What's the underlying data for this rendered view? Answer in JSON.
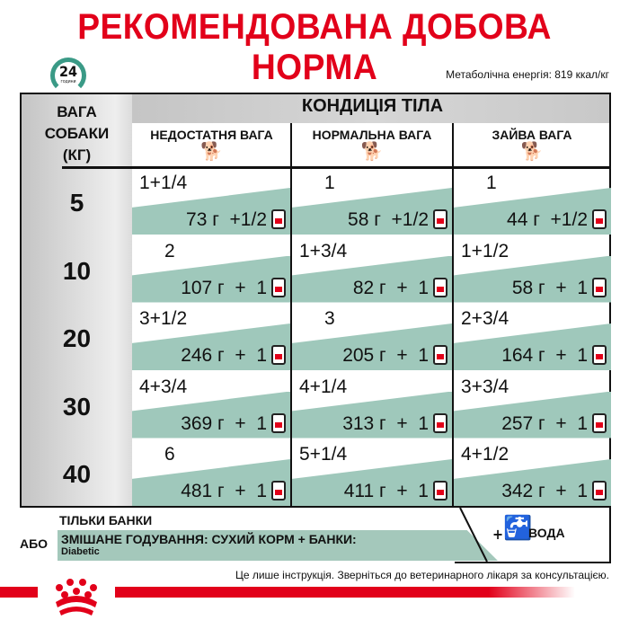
{
  "title": "РЕКОМЕНДОВАНА ДОБОВА НОРМА",
  "clock": {
    "number": "24",
    "label": "години",
    "icon": "clock-24h-icon",
    "color": "#3a9a86"
  },
  "energy": "Метаболічна енергія: 819 ккал/кг",
  "table": {
    "condition_header": "КОНДИЦІЯ ТІЛА",
    "weight_header": [
      "ВАГА",
      "СОБАКИ",
      "(КГ)"
    ],
    "columns": [
      {
        "label": "НЕДОСТАТНЯ ВАГА",
        "icon": "thin-dog-icon"
      },
      {
        "label": "НОРМАЛЬНА ВАГА",
        "icon": "normal-dog-icon"
      },
      {
        "label": "ЗАЙВА ВАГА",
        "icon": "fat-dog-icon"
      }
    ],
    "rows": [
      {
        "weight": "5",
        "cells": [
          {
            "cans": "1+1/4",
            "dry": "73 г  +1/2"
          },
          {
            "cans": "1",
            "dry": "58 г  +1/2"
          },
          {
            "cans": "1",
            "dry": "44 г  +1/2"
          }
        ]
      },
      {
        "weight": "10",
        "cells": [
          {
            "cans": "2",
            "dry": "107 г  +  1"
          },
          {
            "cans": "1+3/4",
            "dry": "82 г  +  1"
          },
          {
            "cans": "1+1/2",
            "dry": "58 г  +  1"
          }
        ]
      },
      {
        "weight": "20",
        "cells": [
          {
            "cans": "3+1/2",
            "dry": "246 г  +  1"
          },
          {
            "cans": "3",
            "dry": "205 г  +  1"
          },
          {
            "cans": "2+3/4",
            "dry": "164 г  +  1"
          }
        ]
      },
      {
        "weight": "30",
        "cells": [
          {
            "cans": "4+3/4",
            "dry": "369 г  +  1"
          },
          {
            "cans": "4+1/4",
            "dry": "313 г  +  1"
          },
          {
            "cans": "3+3/4",
            "dry": "257 г  +  1"
          }
        ]
      },
      {
        "weight": "40",
        "cells": [
          {
            "cans": "6",
            "dry": "481 г  +  1"
          },
          {
            "cans": "5+1/4",
            "dry": "411 г  +  1"
          },
          {
            "cans": "4+1/2",
            "dry": "342 г  +  1"
          }
        ]
      }
    ]
  },
  "legend": {
    "cans_only": "ТІЛЬКИ БАНКИ",
    "or": "АБО",
    "mixed": "ЗМІШАНЕ ГОДУВАННЯ: СУХИЙ КОРМ + БАНКИ:",
    "product": "Diabetic",
    "plus": "+",
    "water": "ВОДА"
  },
  "disclaimer": "Це лише інструкція. Зверніться до ветеринарного лікаря за консультацією.",
  "colors": {
    "brand_red": "#e2001a",
    "teal": "#9fc8bb"
  }
}
